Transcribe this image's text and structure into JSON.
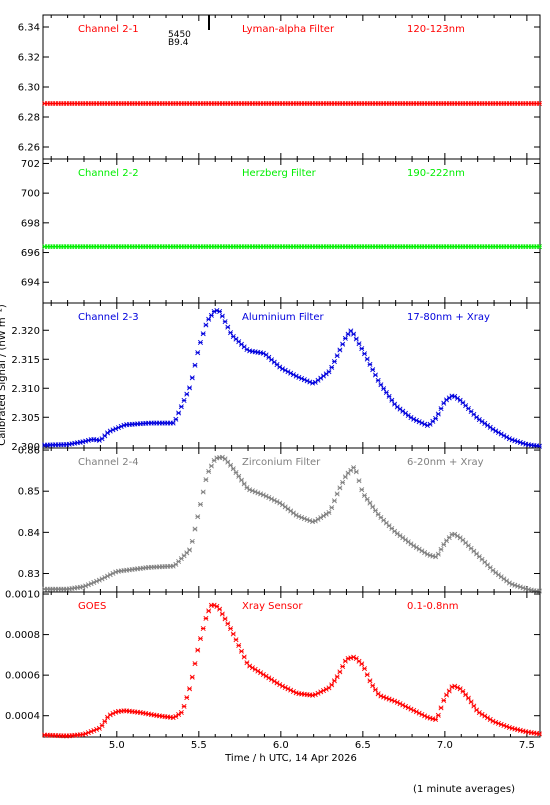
{
  "figure": {
    "ylabel": "Calibrated Signal / (nW m⁻²)",
    "xlabel": "Time / h UTC, 14 Apr 2026",
    "footnote": "(1 minute averages)",
    "marker_annotation": [
      "5450",
      "B9.4"
    ]
  },
  "chart_data": [
    {
      "type": "scatter",
      "title_labels": [
        "Channel 2-1",
        "Lyman-alpha Filter",
        "120-123nm"
      ],
      "color": "#ff0000",
      "xlim": [
        4.55,
        7.58
      ],
      "ylim": [
        6.252,
        6.348
      ],
      "yticks": [
        6.26,
        6.28,
        6.3,
        6.32,
        6.34
      ],
      "ytick_labels": [
        "6.26",
        "6.28",
        "6.30",
        "6.32",
        "6.34"
      ],
      "x": [
        4.6,
        5.0,
        5.5,
        6.0,
        6.5,
        7.0,
        7.5
      ],
      "y": [
        6.289,
        6.289,
        6.289,
        6.289,
        6.289,
        6.289,
        6.289
      ]
    },
    {
      "type": "scatter",
      "title_labels": [
        "Channel 2-2",
        "Herzberg Filter",
        "190-222nm"
      ],
      "color": "#00ee00",
      "xlim": [
        4.55,
        7.58
      ],
      "ylim": [
        692.6,
        702.3
      ],
      "yticks": [
        694,
        696,
        698,
        700,
        702
      ],
      "ytick_labels": [
        "694",
        "696",
        "698",
        "700",
        "702"
      ],
      "x": [
        4.6,
        5.0,
        5.5,
        6.0,
        6.5,
        7.0,
        7.5
      ],
      "y": [
        696.4,
        696.4,
        696.4,
        696.4,
        696.4,
        696.4,
        696.4
      ]
    },
    {
      "type": "scatter",
      "title_labels": [
        "Channel 2-3",
        "Aluminium Filter",
        "17-80nm + Xray"
      ],
      "color": "#0000dd",
      "xlim": [
        4.55,
        7.58
      ],
      "ylim": [
        2.2997,
        2.3247
      ],
      "yticks": [
        2.3,
        2.305,
        2.31,
        2.315,
        2.32
      ],
      "ytick_labels": [
        "2.300",
        "2.305",
        "2.310",
        "2.315",
        "2.320"
      ],
      "x": [
        4.55,
        4.7,
        4.8,
        4.85,
        4.9,
        4.95,
        5.05,
        5.2,
        5.35,
        5.45,
        5.5,
        5.55,
        5.6,
        5.63,
        5.7,
        5.8,
        5.9,
        6.0,
        6.1,
        6.2,
        6.3,
        6.35,
        6.4,
        6.43,
        6.5,
        6.6,
        6.7,
        6.8,
        6.9,
        6.95,
        7.0,
        7.05,
        7.1,
        7.2,
        7.3,
        7.4,
        7.5,
        7.58
      ],
      "y": [
        2.3002,
        2.3003,
        2.3008,
        2.3012,
        2.301,
        2.3025,
        2.3037,
        2.304,
        2.304,
        2.3105,
        2.317,
        2.3215,
        2.3235,
        2.3232,
        2.3192,
        2.3165,
        2.316,
        2.3135,
        2.312,
        2.3108,
        2.313,
        2.316,
        2.319,
        2.32,
        2.3165,
        2.311,
        2.307,
        2.3048,
        2.3035,
        2.305,
        2.3078,
        2.3088,
        2.3078,
        2.3048,
        2.3028,
        2.3012,
        2.3003,
        2.3
      ]
    },
    {
      "type": "scatter",
      "title_labels": [
        "Channel 2-4",
        "Zirconium Filter",
        "6-20nm + Xray"
      ],
      "color": "#808080",
      "xlim": [
        4.55,
        7.58
      ],
      "ylim": [
        0.8255,
        0.8605
      ],
      "yticks": [
        0.83,
        0.84,
        0.85,
        0.86
      ],
      "ytick_labels": [
        "0.83",
        "0.84",
        "0.85",
        "0.86"
      ],
      "x": [
        4.55,
        4.7,
        4.8,
        4.9,
        5.0,
        5.2,
        5.35,
        5.45,
        5.5,
        5.55,
        5.6,
        5.65,
        5.7,
        5.8,
        5.9,
        6.0,
        6.1,
        6.2,
        6.3,
        6.35,
        6.4,
        6.45,
        6.5,
        6.6,
        6.7,
        6.8,
        6.9,
        6.95,
        7.0,
        7.05,
        7.1,
        7.2,
        7.3,
        7.4,
        7.5,
        7.58
      ],
      "y": [
        0.8262,
        0.8262,
        0.8268,
        0.8285,
        0.8305,
        0.8315,
        0.8318,
        0.836,
        0.845,
        0.854,
        0.858,
        0.8583,
        0.856,
        0.8505,
        0.849,
        0.847,
        0.844,
        0.8425,
        0.845,
        0.85,
        0.854,
        0.856,
        0.8495,
        0.844,
        0.84,
        0.837,
        0.8345,
        0.834,
        0.8375,
        0.8398,
        0.8385,
        0.8345,
        0.8305,
        0.8275,
        0.8262,
        0.8255
      ]
    },
    {
      "type": "scatter",
      "title_labels": [
        "GOES",
        "Xray Sensor",
        "0.1-0.8nm"
      ],
      "color": "#ff0000",
      "xlim": [
        4.55,
        7.58
      ],
      "ylim": [
        0.000295,
        0.00101
      ],
      "yticks": [
        0.0004,
        0.0006,
        0.0008,
        0.001
      ],
      "ytick_labels": [
        "0.0004",
        "0.0006",
        "0.0008",
        "0.0010"
      ],
      "x": [
        4.55,
        4.7,
        4.8,
        4.9,
        4.95,
        5.0,
        5.05,
        5.15,
        5.25,
        5.35,
        5.4,
        5.45,
        5.5,
        5.55,
        5.58,
        5.62,
        5.7,
        5.8,
        5.85,
        5.9,
        6.0,
        6.1,
        6.2,
        6.25,
        6.3,
        6.35,
        6.4,
        6.45,
        6.5,
        6.55,
        6.6,
        6.7,
        6.8,
        6.9,
        6.95,
        7.0,
        7.05,
        7.1,
        7.15,
        7.2,
        7.3,
        7.4,
        7.5,
        7.58
      ],
      "y": [
        0.000305,
        0.0003,
        0.000308,
        0.00034,
        0.0004,
        0.00042,
        0.000425,
        0.000415,
        0.0004,
        0.00039,
        0.00042,
        0.00055,
        0.00075,
        0.0009,
        0.00095,
        0.000935,
        0.00082,
        0.00065,
        0.000625,
        0.0006,
        0.00055,
        0.00051,
        0.0005,
        0.00052,
        0.00054,
        0.0006,
        0.00068,
        0.00069,
        0.00065,
        0.00056,
        0.0005,
        0.00047,
        0.00043,
        0.00039,
        0.00038,
        0.00049,
        0.00055,
        0.00053,
        0.00048,
        0.00042,
        0.00037,
        0.00034,
        0.00032,
        0.00031
      ]
    }
  ]
}
